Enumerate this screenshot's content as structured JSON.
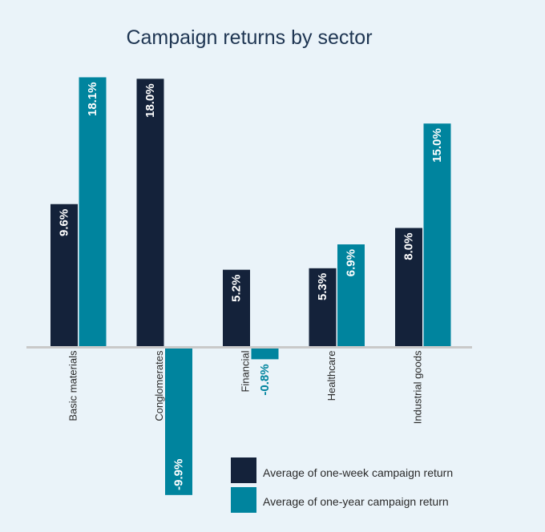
{
  "chart_data": {
    "type": "bar",
    "title": "Campaign returns by sector",
    "categories": [
      "Basic materials",
      "Conglomerates",
      "Financial",
      "Healthcare",
      "Industrial goods"
    ],
    "series": [
      {
        "name": "Average of one-week campaign return",
        "values": [
          9.6,
          18.0,
          5.2,
          5.3,
          8.0
        ],
        "labels": [
          "9.6%",
          "18.0%",
          "5.2%",
          "5.3%",
          "8.0%"
        ],
        "color": "#14223a"
      },
      {
        "name": "Average of one-year campaign return",
        "values": [
          18.1,
          -9.9,
          -0.8,
          6.9,
          15.0
        ],
        "labels": [
          "18.1%",
          "-9.9%",
          "-0.8%",
          "6.9%",
          "15.0%"
        ],
        "color": "#00849e"
      }
    ],
    "ylim": [
      -9.9,
      18.1
    ],
    "grid": false,
    "legend_position": "bottom-right"
  },
  "colors": {
    "background": "#eaf3f9",
    "axis": "#c9c9c9",
    "title": "#1e3552"
  }
}
